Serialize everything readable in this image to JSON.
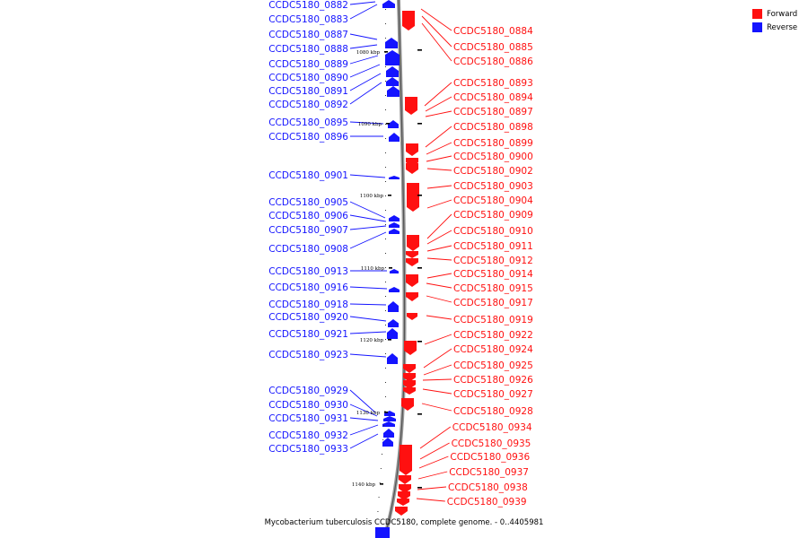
{
  "legend": {
    "forward_label": "Forward",
    "reverse_label": "Reverse",
    "forward_color": "#ff1010",
    "reverse_color": "#1414ff"
  },
  "caption": "Mycobacterium tuberculosis CCDC5180, complete genome. - 0..4405981",
  "axis": {
    "tick_unit": "kbp",
    "ticks": [
      1080,
      1090,
      1100,
      1110,
      1120,
      1130,
      1140
    ]
  },
  "reverse_genes": [
    "CCDC5180_0882",
    "CCDC5180_0883",
    "CCDC5180_0887",
    "CCDC5180_0888",
    "CCDC5180_0889",
    "CCDC5180_0890",
    "CCDC5180_0891",
    "CCDC5180_0892",
    "CCDC5180_0895",
    "CCDC5180_0896",
    "CCDC5180_0901",
    "CCDC5180_0905",
    "CCDC5180_0906",
    "CCDC5180_0907",
    "CCDC5180_0908",
    "CCDC5180_0913",
    "CCDC5180_0916",
    "CCDC5180_0918",
    "CCDC5180_0920",
    "CCDC5180_0921",
    "CCDC5180_0923",
    "CCDC5180_0929",
    "CCDC5180_0930",
    "CCDC5180_0931",
    "CCDC5180_0932",
    "CCDC5180_0933"
  ],
  "forward_genes": [
    "CCDC5180_0884",
    "CCDC5180_0885",
    "CCDC5180_0886",
    "CCDC5180_0893",
    "CCDC5180_0894",
    "CCDC5180_0897",
    "CCDC5180_0898",
    "CCDC5180_0899",
    "CCDC5180_0900",
    "CCDC5180_0902",
    "CCDC5180_0903",
    "CCDC5180_0904",
    "CCDC5180_0909",
    "CCDC5180_0910",
    "CCDC5180_0911",
    "CCDC5180_0912",
    "CCDC5180_0914",
    "CCDC5180_0915",
    "CCDC5180_0917",
    "CCDC5180_0919",
    "CCDC5180_0922",
    "CCDC5180_0924",
    "CCDC5180_0925",
    "CCDC5180_0926",
    "CCDC5180_0927",
    "CCDC5180_0928",
    "CCDC5180_0934",
    "CCDC5180_0935",
    "CCDC5180_0936",
    "CCDC5180_0937",
    "CCDC5180_0938",
    "CCDC5180_0939"
  ]
}
